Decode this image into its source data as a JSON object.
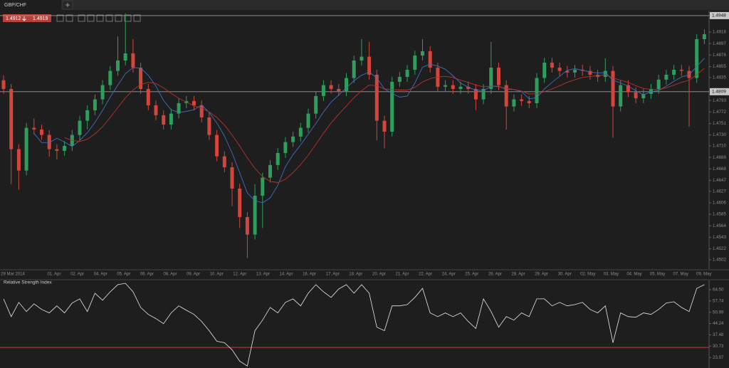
{
  "tab": {
    "title": "GBP/CHF"
  },
  "quote": {
    "bid": 1.4912,
    "ask": 1.4919
  },
  "chart_data": [
    {
      "type": "candlestick",
      "x_labels": [
        "29 Mar 2014",
        "01. Apr",
        "02. Apr",
        "04. Apr",
        "05. Apr",
        "06. Apr",
        "08. Apr",
        "09. Apr",
        "10. Apr",
        "12. Apr",
        "13. Apr",
        "14. Apr",
        "16. Apr",
        "17. Apr",
        "18. Apr",
        "20. Apr",
        "21. Apr",
        "22. Apr",
        "24. Apr",
        "25. Apr",
        "26. Apr",
        "28. Apr",
        "29. Apr",
        "30. Apr",
        "02. May",
        "03. May",
        "04. May",
        "05. May",
        "07. May",
        "09. May"
      ],
      "open": [
        1.483,
        1.4814,
        1.4704,
        1.4665,
        1.4743,
        1.474,
        1.473,
        1.4704,
        1.4701,
        1.471,
        1.473,
        1.4756,
        1.4775,
        1.4795,
        1.4821,
        1.4847,
        1.4866,
        1.4879,
        1.4853,
        1.4814,
        1.4784,
        1.4766,
        1.4749,
        1.4769,
        1.4788,
        1.4792,
        1.4784,
        1.4762,
        1.473,
        1.4691,
        1.4671,
        1.4632,
        1.458,
        1.4548,
        1.4619,
        1.4652,
        1.4675,
        1.4697,
        1.4717,
        1.4727,
        1.4743,
        1.4769,
        1.4801,
        1.4821,
        1.4814,
        1.481,
        1.4834,
        1.4866,
        1.4873,
        1.484,
        1.4756,
        1.4736,
        1.4827,
        1.4836,
        1.4849,
        1.4875,
        1.4883,
        1.4853,
        1.4818,
        1.4821,
        1.4814,
        1.4818,
        1.4814,
        1.4795,
        1.4814,
        1.4853,
        1.4821,
        1.4782,
        1.4795,
        1.4792,
        1.4788,
        1.4834,
        1.4862,
        1.4853,
        1.4847,
        1.4844,
        1.4849,
        1.4847,
        1.484,
        1.4836,
        1.4847,
        1.4782,
        1.4821,
        1.4808,
        1.4797,
        1.4805,
        1.4814,
        1.4831,
        1.484,
        1.4849,
        1.4847,
        1.4834,
        1.4905
      ],
      "high": [
        1.4839,
        1.4823,
        1.4713,
        1.4752,
        1.476,
        1.4749,
        1.4739,
        1.4713,
        1.4719,
        1.4739,
        1.4765,
        1.4784,
        1.4804,
        1.483,
        1.4856,
        1.491,
        1.4952,
        1.4905,
        1.4862,
        1.4823,
        1.4793,
        1.4775,
        1.4778,
        1.4797,
        1.4801,
        1.4801,
        1.4793,
        1.4771,
        1.4739,
        1.47,
        1.468,
        1.4641,
        1.4589,
        1.464,
        1.4661,
        1.4684,
        1.4706,
        1.4726,
        1.4736,
        1.4752,
        1.4778,
        1.481,
        1.483,
        1.483,
        1.4823,
        1.4843,
        1.4875,
        1.4905,
        1.49,
        1.4849,
        1.4765,
        1.4836,
        1.4845,
        1.4858,
        1.4884,
        1.4905,
        1.4892,
        1.4862,
        1.483,
        1.483,
        1.4827,
        1.4827,
        1.4823,
        1.4823,
        1.49,
        1.4862,
        1.483,
        1.4804,
        1.4804,
        1.4801,
        1.4843,
        1.4871,
        1.4871,
        1.4862,
        1.4856,
        1.4858,
        1.4858,
        1.4856,
        1.4849,
        1.487,
        1.4856,
        1.483,
        1.483,
        1.4817,
        1.4814,
        1.4823,
        1.484,
        1.4849,
        1.4858,
        1.4858,
        1.4856,
        1.4914,
        1.4923
      ],
      "low": [
        1.4805,
        1.464,
        1.463,
        1.4656,
        1.4731,
        1.4721,
        1.469,
        1.4685,
        1.4692,
        1.4701,
        1.4721,
        1.474,
        1.4766,
        1.4786,
        1.4812,
        1.4838,
        1.4857,
        1.4844,
        1.4805,
        1.4775,
        1.4757,
        1.474,
        1.474,
        1.476,
        1.4779,
        1.4775,
        1.4753,
        1.4721,
        1.4682,
        1.4662,
        1.46,
        1.456,
        1.4505,
        1.4539,
        1.456,
        1.4643,
        1.4666,
        1.4688,
        1.4708,
        1.4718,
        1.4734,
        1.476,
        1.4792,
        1.4805,
        1.4801,
        1.4801,
        1.4825,
        1.4857,
        1.4831,
        1.472,
        1.4705,
        1.4727,
        1.4818,
        1.4827,
        1.484,
        1.4866,
        1.4844,
        1.4809,
        1.4809,
        1.4805,
        1.4805,
        1.4805,
        1.4775,
        1.4786,
        1.4805,
        1.4812,
        1.474,
        1.4773,
        1.4783,
        1.4779,
        1.4779,
        1.4825,
        1.4844,
        1.4838,
        1.4835,
        1.4835,
        1.4838,
        1.4831,
        1.4827,
        1.4827,
        1.4725,
        1.4773,
        1.4799,
        1.4788,
        1.4788,
        1.4796,
        1.4805,
        1.4822,
        1.4831,
        1.4838,
        1.4745,
        1.4825,
        1.4896
      ],
      "close": [
        1.4814,
        1.4704,
        1.4665,
        1.4743,
        1.474,
        1.473,
        1.4704,
        1.4701,
        1.471,
        1.473,
        1.4756,
        1.4775,
        1.4795,
        1.4821,
        1.4847,
        1.4866,
        1.4879,
        1.4853,
        1.4814,
        1.4784,
        1.4766,
        1.4749,
        1.4769,
        1.4788,
        1.4792,
        1.4784,
        1.4762,
        1.473,
        1.4691,
        1.4671,
        1.4632,
        1.458,
        1.4548,
        1.4619,
        1.4652,
        1.4675,
        1.4697,
        1.4717,
        1.4727,
        1.4743,
        1.4769,
        1.4801,
        1.4821,
        1.4814,
        1.481,
        1.4834,
        1.4866,
        1.4873,
        1.484,
        1.4756,
        1.4736,
        1.4827,
        1.4836,
        1.4849,
        1.4875,
        1.4883,
        1.4853,
        1.4818,
        1.4821,
        1.4814,
        1.4818,
        1.4814,
        1.4795,
        1.4814,
        1.4853,
        1.4821,
        1.4782,
        1.4795,
        1.4792,
        1.4788,
        1.4834,
        1.4862,
        1.4853,
        1.4847,
        1.4844,
        1.4849,
        1.4847,
        1.484,
        1.4836,
        1.4847,
        1.4782,
        1.4821,
        1.4808,
        1.4797,
        1.4805,
        1.4814,
        1.4831,
        1.484,
        1.4849,
        1.4847,
        1.4834,
        1.4905,
        1.4914
      ],
      "up_color": "#2f9e5c",
      "down_color": "#d4453c",
      "moving_averages": [
        {
          "color": "#3f6fc0",
          "values": [
            null,
            null,
            null,
            null,
            1.4733,
            1.4716,
            1.4716,
            1.4724,
            1.4717,
            1.4709,
            1.472,
            1.4734,
            1.4753,
            1.4775,
            1.4799,
            1.4821,
            1.4842,
            1.4853,
            1.4852,
            1.4839,
            1.4819,
            1.4793,
            1.4776,
            1.4771,
            1.4773,
            1.4776,
            1.4785,
            1.4771,
            1.4752,
            1.4728,
            1.4697,
            1.4661,
            1.4624,
            1.461,
            1.4606,
            1.4615,
            1.4638,
            1.4672,
            1.4694,
            1.4712,
            1.4731,
            1.4751,
            1.4772,
            1.479,
            1.4803,
            1.4816,
            1.4829,
            1.4839,
            1.4845,
            1.4834,
            1.4814,
            1.4806,
            1.4799,
            1.4801,
            1.4825,
            1.4854,
            1.4859,
            1.4856,
            1.485,
            1.4838,
            1.4825,
            1.4817,
            1.4812,
            1.4811,
            1.4819,
            1.4819,
            1.4813,
            1.4813,
            1.4809,
            1.4796,
            1.4798,
            1.4814,
            1.4826,
            1.4837,
            1.4848,
            1.4851,
            1.4848,
            1.4845,
            1.4843,
            1.4844,
            1.483,
            1.4825,
            1.4819,
            1.4811,
            1.4803,
            1.4809,
            1.4811,
            1.4819,
            1.4828,
            1.4836,
            1.484,
            1.4855,
            1.487
          ]
        },
        {
          "color": "#b8322e",
          "values": [
            null,
            null,
            null,
            null,
            null,
            null,
            null,
            null,
            1.4725,
            1.472,
            1.4718,
            1.4722,
            1.4732,
            1.4745,
            1.4762,
            1.478,
            1.4798,
            1.4812,
            1.4822,
            1.4826,
            1.4824,
            1.4816,
            1.4806,
            1.4797,
            1.479,
            1.4783,
            1.4779,
            1.4772,
            1.4762,
            1.4748,
            1.473,
            1.471,
            1.4688,
            1.4669,
            1.4654,
            1.4645,
            1.4643,
            1.4649,
            1.4661,
            1.4676,
            1.4693,
            1.4713,
            1.4733,
            1.4752,
            1.4768,
            1.4783,
            1.4798,
            1.4811,
            1.4821,
            1.482,
            1.4814,
            1.4813,
            1.4812,
            1.4812,
            1.4817,
            1.4827,
            1.4833,
            1.4836,
            1.4837,
            1.4835,
            1.483,
            1.4826,
            1.4821,
            1.4818,
            1.4819,
            1.4818,
            1.4815,
            1.4813,
            1.481,
            1.4805,
            1.4805,
            1.4809,
            1.4814,
            1.482,
            1.4826,
            1.4831,
            1.4835,
            1.4837,
            1.4838,
            1.484,
            1.4834,
            1.483,
            1.4826,
            1.482,
            1.4815,
            1.4813,
            1.4813,
            1.4816,
            1.4821,
            1.4826,
            1.483,
            1.484,
            1.4852
          ]
        }
      ],
      "price_lines": [
        1.4948,
        1.4809
      ],
      "ylim": [
        1.4485,
        1.4957
      ],
      "yticks": [
        1.4918,
        1.4897,
        1.4876,
        1.4855,
        1.4835,
        1.4793,
        1.4772,
        1.4751,
        {
          "value": 1.473,
          "label": "1.4730"
        },
        {
          "value": 1.471,
          "label": "1.4710"
        },
        1.4689,
        1.4668,
        1.4647,
        1.4627,
        1.4606,
        1.4585,
        1.4564,
        1.4543,
        1.4522,
        1.4502
      ]
    },
    {
      "type": "line",
      "title": "Relative Strength Index",
      "color": "#e8e8e8",
      "values": [
        59.0,
        48.4,
        56.9,
        51.4,
        56.0,
        52.7,
        50.6,
        54.8,
        50.6,
        56.5,
        59.0,
        51.4,
        62.4,
        58.2,
        63.2,
        67.5,
        68.3,
        63.2,
        53.9,
        49.7,
        47.2,
        44.2,
        50.6,
        54.8,
        52.2,
        49.7,
        45.5,
        40.0,
        33.7,
        32.8,
        28.6,
        21.8,
        18.9,
        40.0,
        46.3,
        53.9,
        50.6,
        56.9,
        59.0,
        54.8,
        62.4,
        67.5,
        63.2,
        59.9,
        64.9,
        67.5,
        62.4,
        67.5,
        62.4,
        42.1,
        40.0,
        54.8,
        54.8,
        55.6,
        59.9,
        65.3,
        50.6,
        48.4,
        50.6,
        48.4,
        50.6,
        45.5,
        41.3,
        59.0,
        51.4,
        42.1,
        48.4,
        46.3,
        50.6,
        48.4,
        59.0,
        59.0,
        54.8,
        56.9,
        54.8,
        55.6,
        56.9,
        52.7,
        50.6,
        54.8,
        32.8,
        50.6,
        48.4,
        48.0,
        50.6,
        49.7,
        52.7,
        56.5,
        57.3,
        53.9,
        51.4,
        65.3,
        67.5
      ],
      "level": 30,
      "level_color": "#b8442f",
      "ylim": [
        17.7,
        70
      ],
      "yticks": [
        {
          "value": 64.5,
          "label": "64.50"
        },
        57.74,
        50.99,
        44.24,
        37.48,
        30.73,
        23.97
      ]
    }
  ]
}
